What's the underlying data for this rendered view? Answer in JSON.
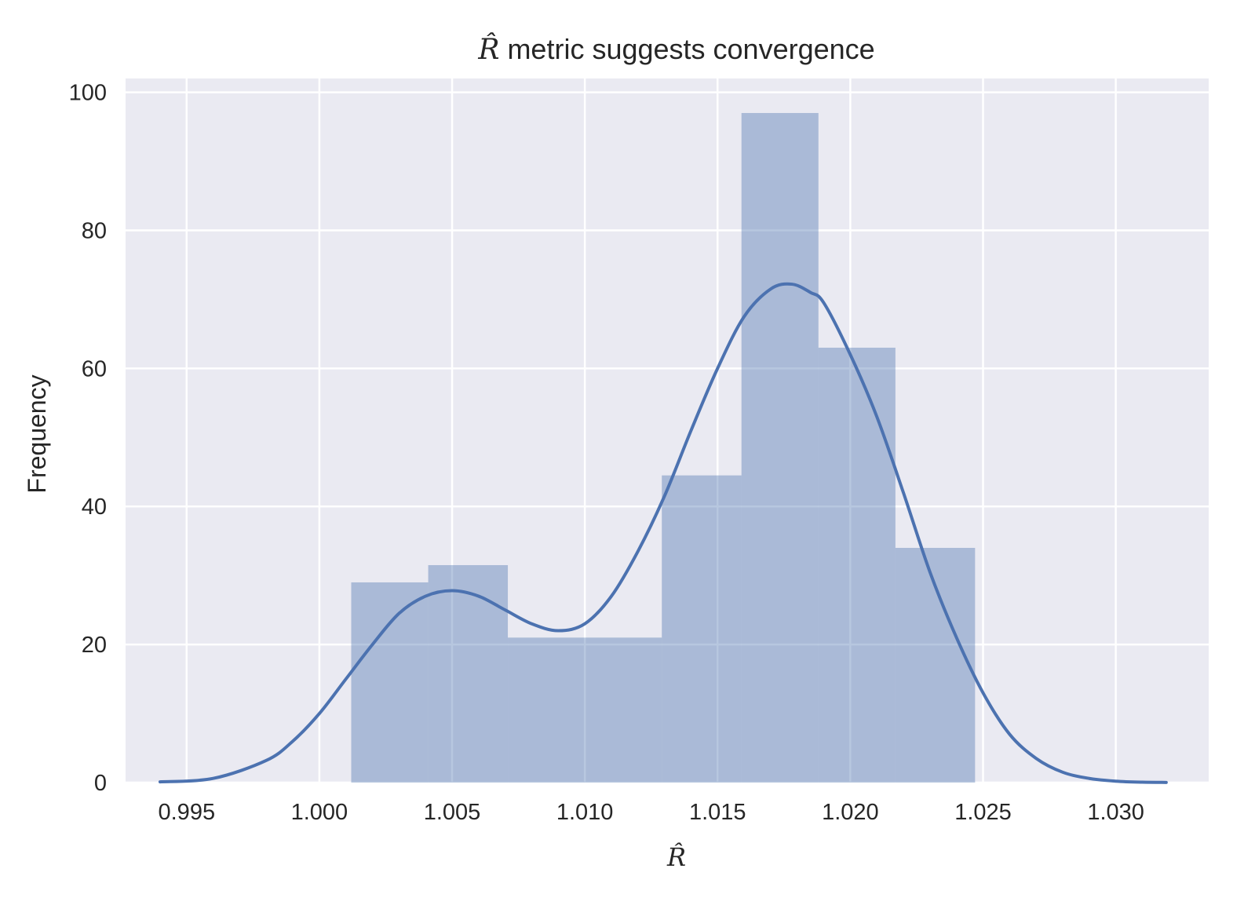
{
  "chart_data": {
    "type": "bar",
    "title_symbol": "R̂",
    "title_rest": " metric suggests convergence",
    "xlabel": "R̂",
    "ylabel": "Frequency",
    "xlim": [
      0.9927,
      1.0335
    ],
    "ylim": [
      0,
      102
    ],
    "xticks": [
      0.995,
      1.0,
      1.005,
      1.01,
      1.015,
      1.02,
      1.025,
      1.03
    ],
    "xtick_labels": [
      "0.995",
      "1.000",
      "1.005",
      "1.010",
      "1.015",
      "1.020",
      "1.025",
      "1.030"
    ],
    "yticks": [
      0,
      20,
      40,
      60,
      80,
      100
    ],
    "ytick_labels": [
      "0",
      "20",
      "40",
      "60",
      "80",
      "100"
    ],
    "grid": true,
    "histogram": {
      "bin_edges": [
        1.0012,
        1.0041,
        1.0071,
        1.01,
        1.0129,
        1.0159,
        1.0188,
        1.0217,
        1.0247
      ],
      "values": [
        29,
        31.5,
        21,
        21,
        44.5,
        97,
        63,
        34
      ]
    },
    "kde": {
      "x": [
        0.994,
        0.996,
        0.998,
        0.999,
        1.0,
        1.001,
        1.002,
        1.003,
        1.004,
        1.005,
        1.006,
        1.007,
        1.008,
        1.009,
        1.01,
        1.011,
        1.012,
        1.013,
        1.014,
        1.015,
        1.016,
        1.017,
        1.0178,
        1.0185,
        1.019,
        1.02,
        1.021,
        1.022,
        1.023,
        1.024,
        1.025,
        1.026,
        1.027,
        1.028,
        1.029,
        1.03,
        1.031,
        1.0319
      ],
      "y": [
        0.1,
        0.6,
        3.2,
        6,
        10,
        15,
        20,
        24.5,
        27,
        27.8,
        27,
        25,
        23,
        22,
        23,
        27,
        33.5,
        41.5,
        51,
        60,
        67.5,
        71.5,
        72.2,
        71,
        69.5,
        62,
        53,
        42,
        30.5,
        21,
        13,
        7,
        3.5,
        1.5,
        0.6,
        0.2,
        0.05,
        0.02
      ]
    },
    "colors": {
      "background": "#eaeaf2",
      "grid": "#ffffff",
      "bars": "#4c72b0",
      "bars_opacity": 0.4,
      "kde_line": "#4c72b0"
    }
  }
}
